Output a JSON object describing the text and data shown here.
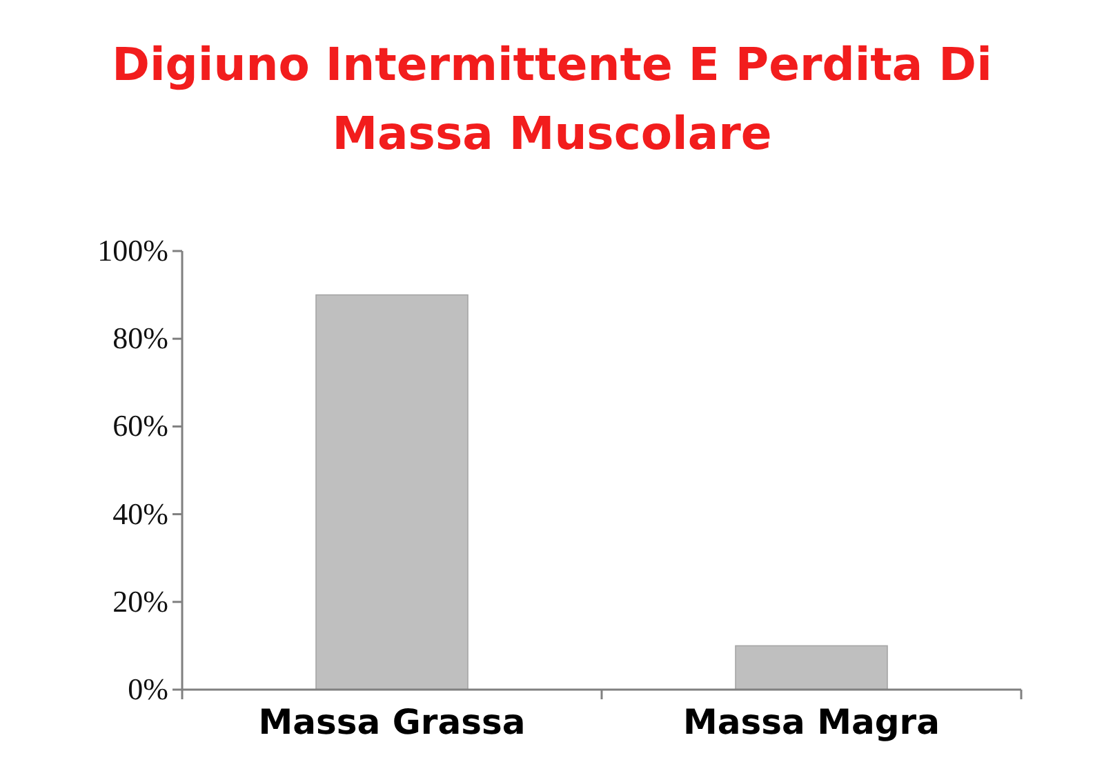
{
  "chart_data": {
    "type": "bar",
    "title": "Digiuno Intermittente E Perdita Di Massa Muscolare",
    "categories": [
      "Massa Grassa",
      "Massa Magra"
    ],
    "values": [
      90,
      10
    ],
    "color": "#bfbfbf",
    "ylim": [
      0,
      100
    ],
    "yticks": [
      {
        "value": 0,
        "label": "0%"
      },
      {
        "value": 20,
        "label": "20%"
      },
      {
        "value": 40,
        "label": "40%"
      },
      {
        "value": 60,
        "label": "60%"
      },
      {
        "value": 80,
        "label": "80%"
      },
      {
        "value": 100,
        "label": "100%"
      }
    ]
  }
}
